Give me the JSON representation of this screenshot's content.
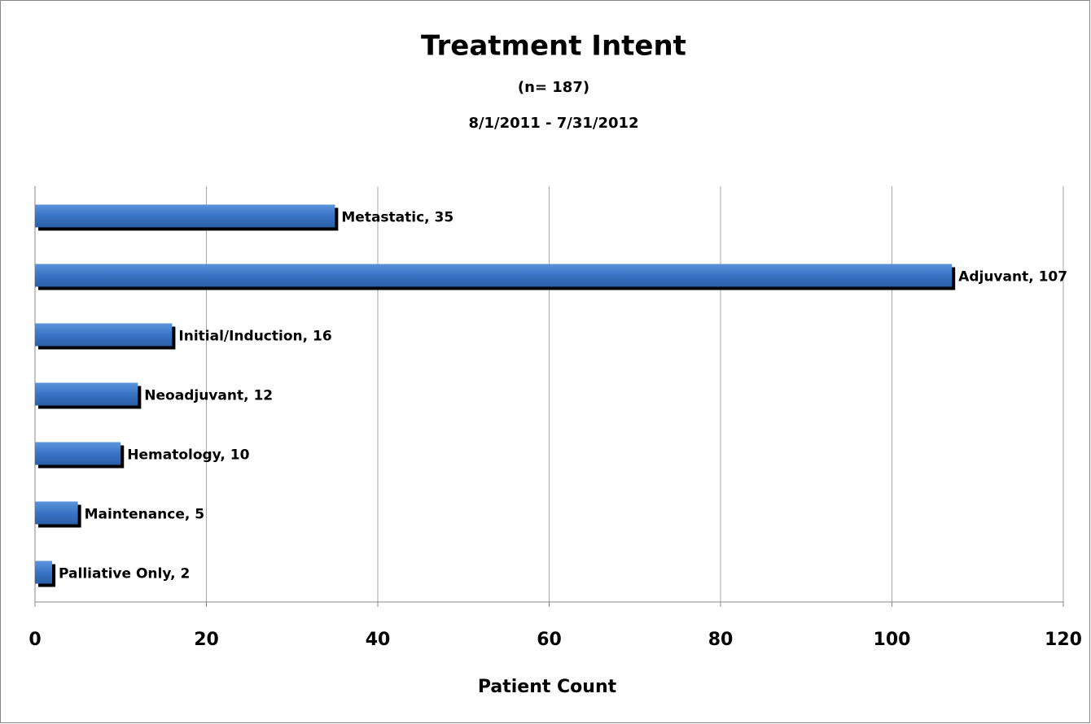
{
  "chart_data": {
    "type": "barh",
    "title": "Treatment Intent",
    "subtitle": [
      "(n= 187)",
      "8/1/2011 - 7/31/2012"
    ],
    "x_label": "Patient Count",
    "values": [
      35,
      107,
      16,
      12,
      10,
      5,
      2
    ],
    "value_labels": [
      "Metastatic, 35",
      "Adjuvant, 107",
      "Initial/Induction, 16",
      "Neoadjuvant, 12",
      "Hematology, 10",
      "Maintenance, 5",
      "Palliative Only, 2"
    ],
    "color": "#3a74c4",
    "xlim": [
      0,
      120
    ],
    "xticks": [
      0,
      20,
      40,
      60,
      80,
      100,
      120
    ],
    "grid": true
  }
}
